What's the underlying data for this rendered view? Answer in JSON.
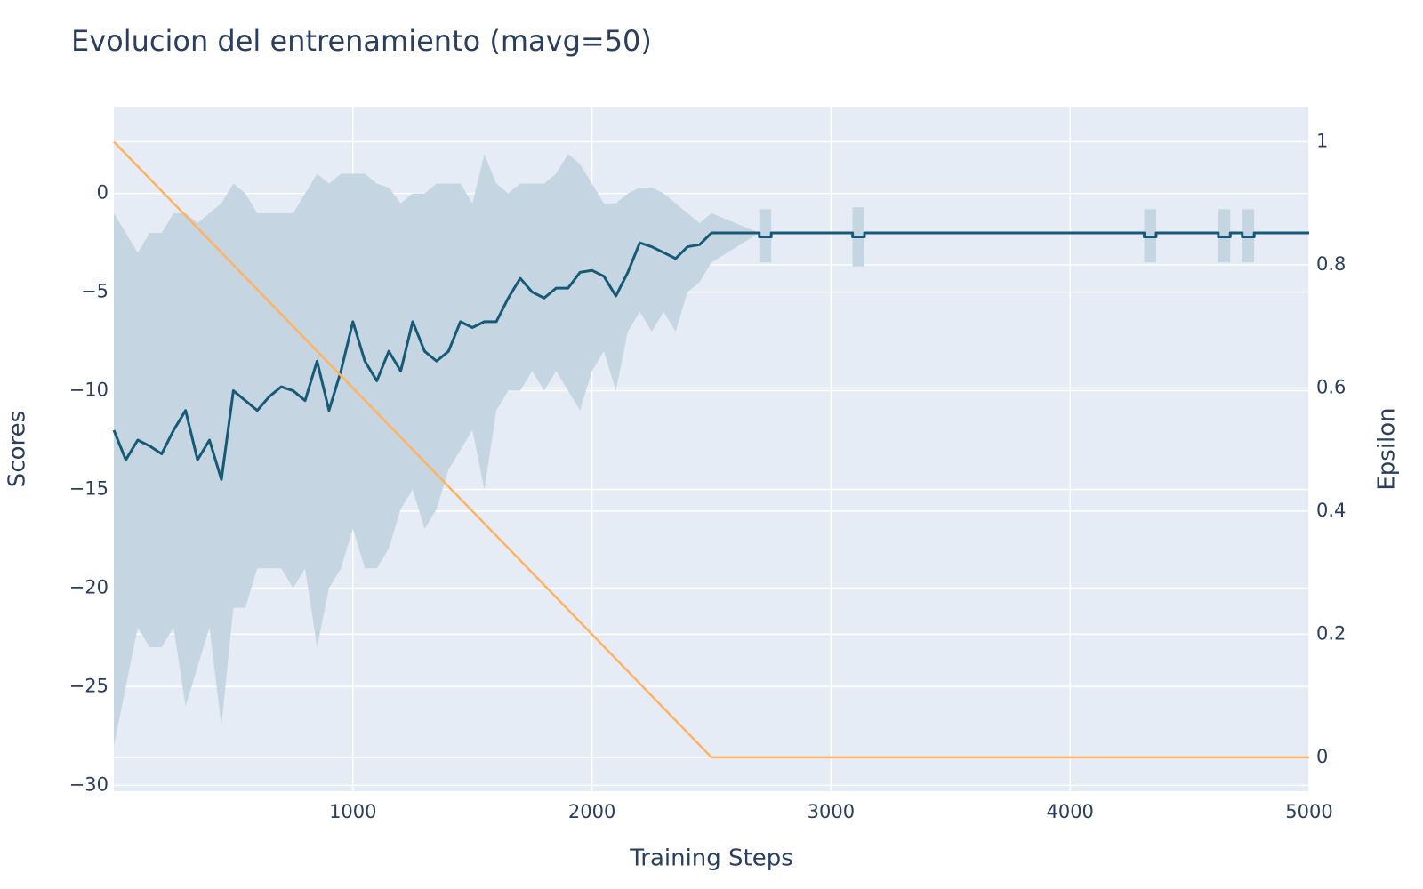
{
  "chart_data": {
    "type": "line",
    "title": "Evolucion del entrenamiento (mavg=50)",
    "xlabel": "Training Steps",
    "ylabel": "Scores",
    "y2label": "Epsilon",
    "x": [
      0,
      50,
      100,
      150,
      200,
      250,
      300,
      350,
      400,
      450,
      500,
      550,
      600,
      650,
      700,
      750,
      800,
      850,
      900,
      950,
      1000,
      1050,
      1100,
      1150,
      1200,
      1250,
      1300,
      1350,
      1400,
      1450,
      1500,
      1550,
      1600,
      1650,
      1700,
      1750,
      1800,
      1850,
      1900,
      1950,
      2000,
      2050,
      2100,
      2150,
      2200,
      2250,
      2300,
      2350,
      2400,
      2450,
      2500,
      2700,
      2700,
      2750,
      2750,
      3090,
      3090,
      3140,
      3140,
      4310,
      4310,
      4360,
      4360,
      4620,
      4620,
      4670,
      4670,
      4720,
      4720,
      4770,
      4770,
      5000
    ],
    "series": [
      {
        "color": "#175a76",
        "band_color": "#c5d6e2",
        "values": [
          -12,
          -13.5,
          -12.5,
          -12.8,
          -13.2,
          -12,
          -11,
          -13.5,
          -12.5,
          -14.5,
          -10,
          -10.5,
          -11,
          -10.3,
          -9.8,
          -10,
          -10.5,
          -8.5,
          -11,
          -9,
          -6.5,
          -8.5,
          -9.5,
          -8,
          -9,
          -6.5,
          -8,
          -8.5,
          -8,
          -6.5,
          -6.8,
          -6.5,
          -6.5,
          -5.3,
          -4.3,
          -5,
          -5.3,
          -4.8,
          -4.8,
          -4,
          -3.9,
          -4.2,
          -5.2,
          -4,
          -2.5,
          -2.7,
          -3,
          -3.3,
          -2.7,
          -2.6,
          -2,
          -2,
          -2.2,
          -2.2,
          -2,
          -2,
          -2.2,
          -2.2,
          -2,
          -2,
          -2.2,
          -2.2,
          -2,
          -2,
          -2.2,
          -2.2,
          -2,
          -2,
          -2.2,
          -2.2,
          -2,
          -2
        ],
        "upper": [
          -1,
          -2,
          -3,
          -2,
          -2,
          -1,
          -1,
          -1.5,
          -1,
          -0.5,
          0.5,
          0,
          -1,
          -1,
          -1,
          -1,
          0,
          1,
          0.5,
          1,
          1,
          1,
          0.5,
          0.3,
          -0.5,
          0,
          0,
          0.5,
          0.5,
          0.5,
          -0.5,
          2,
          0.5,
          0,
          0.5,
          0.5,
          0.5,
          1,
          2,
          1.5,
          0.5,
          -0.5,
          -0.5,
          0,
          0.3,
          0.3,
          0,
          -0.5,
          -1,
          -1.5,
          -1,
          -2,
          -0.8,
          -0.8,
          -2,
          -2,
          -0.7,
          -0.7,
          -2,
          -2,
          -0.8,
          -0.8,
          -2,
          -2,
          -0.8,
          -0.8,
          -2,
          -2,
          -0.8,
          -0.8,
          -2,
          -2
        ],
        "lower": [
          -28,
          -25,
          -22,
          -23,
          -23,
          -22,
          -26,
          -24,
          -22,
          -27,
          -21,
          -21,
          -19,
          -19,
          -19,
          -20,
          -19,
          -23,
          -20,
          -19,
          -17,
          -19,
          -19,
          -18,
          -16,
          -15,
          -17,
          -16,
          -14,
          -13,
          -12,
          -15,
          -11,
          -10,
          -10,
          -9,
          -10,
          -9,
          -10,
          -11,
          -9,
          -8,
          -10,
          -7,
          -6,
          -7,
          -6,
          -7,
          -5,
          -4.5,
          -3.5,
          -2,
          -3.5,
          -3.5,
          -2,
          -2,
          -3.7,
          -3.7,
          -2,
          -2,
          -3.5,
          -3.5,
          -2,
          -2,
          -3.5,
          -3.5,
          -2,
          -2,
          -3.5,
          -3.5,
          -2,
          -2
        ]
      },
      {
        "color": "#ffb25f",
        "axis": "y2",
        "x": [
          0,
          2500,
          5000
        ],
        "values": [
          1,
          0,
          0
        ]
      }
    ],
    "xlim": [
      0,
      5000
    ],
    "ylim": [
      -30.3,
      4.4
    ],
    "y2lim": [
      -0.055,
      1.057
    ],
    "xticks": [
      1000,
      2000,
      3000,
      4000,
      5000
    ],
    "yticks": [
      0,
      {
        "value": -5,
        "label": "−5"
      },
      {
        "value": -10,
        "label": "−10"
      },
      {
        "value": -15,
        "label": "−15"
      },
      {
        "value": -20,
        "label": "−20"
      },
      {
        "value": -25,
        "label": "−25"
      },
      {
        "value": -30,
        "label": "−30"
      }
    ],
    "y2ticks": [
      0,
      0.2,
      0.4,
      0.6,
      0.8,
      1
    ],
    "grid": true
  }
}
